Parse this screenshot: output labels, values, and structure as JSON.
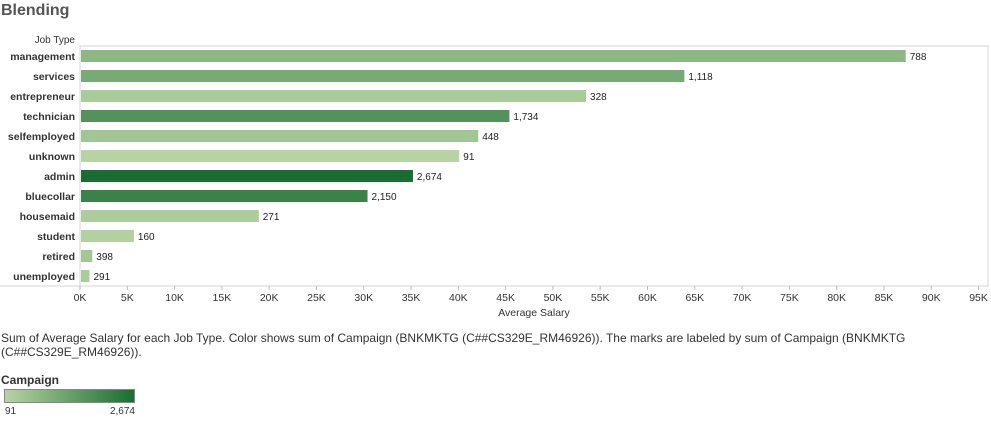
{
  "title": "Blending",
  "caption": "Sum of Average Salary for each Job Type.  Color shows sum of Campaign (BNKMKTG (C##CS329E_RM46926)).  The marks are labeled by sum of Campaign (BNKMKTG (C##CS329E_RM46926)).",
  "legend": {
    "title": "Campaign",
    "min_label": "91",
    "max_label": "2,674",
    "color_low": "#b7d3a3",
    "color_high": "#1a6d32"
  },
  "chart_data": {
    "type": "bar",
    "orientation": "horizontal",
    "ylabel": "Job Type",
    "xlabel": "Average Salary",
    "xlim": [
      0,
      96000
    ],
    "x_ticks": [
      "0K",
      "5K",
      "10K",
      "15K",
      "20K",
      "25K",
      "30K",
      "35K",
      "40K",
      "45K",
      "50K",
      "55K",
      "60K",
      "65K",
      "70K",
      "75K",
      "80K",
      "85K",
      "90K",
      "95K"
    ],
    "categories": [
      "management",
      "services",
      "entrepreneur",
      "technician",
      "selfemployed",
      "unknown",
      "admin",
      "bluecollar",
      "housemaid",
      "student",
      "retired",
      "unemployed"
    ],
    "values": [
      87300,
      63900,
      53500,
      45400,
      42100,
      40100,
      35200,
      30400,
      18900,
      5700,
      1300,
      1000
    ],
    "campaign": [
      788,
      1118,
      328,
      1734,
      448,
      91,
      2674,
      2150,
      271,
      160,
      398,
      291
    ],
    "labels": [
      "788",
      "1,118",
      "328",
      "1,734",
      "448",
      "91",
      "2,674",
      "2,150",
      "271",
      "160",
      "398",
      "291"
    ],
    "color_range": [
      91,
      2674
    ]
  }
}
